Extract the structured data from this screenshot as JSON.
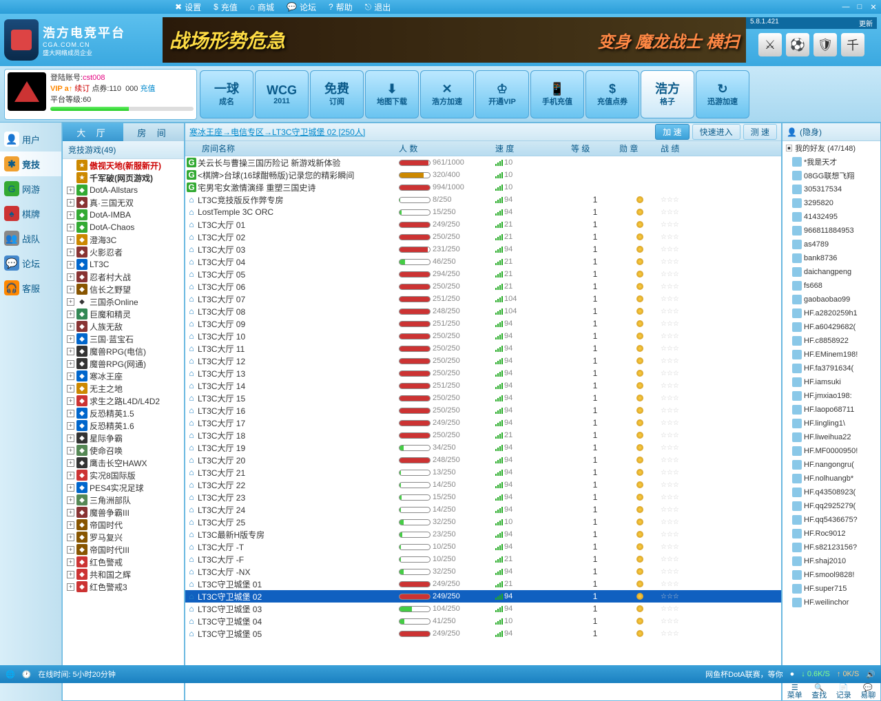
{
  "topbar": {
    "menu": [
      "设置",
      "充值",
      "商城",
      "论坛",
      "帮助",
      "退出"
    ],
    "version": "5.8.1.421",
    "update": "更新"
  },
  "logo": {
    "cn": "浩方电竞平台",
    "en": "CGA.COM.CN",
    "sub": "盛大网络成员企业"
  },
  "banner": {
    "left": "战场形势危急",
    "right": "变身 魔龙战士 横扫"
  },
  "account": {
    "label": "登陆账号:",
    "user": "cst008",
    "vip": "VIP a↑",
    "status": "续订",
    "points_label": "点券:",
    "points": "110",
    "recharge": "充值",
    "level_label": "平台等级:",
    "level": "60",
    "level_pct": 55
  },
  "launch": [
    {
      "t1": "一球",
      "t2": "成名"
    },
    {
      "t1": "WCG",
      "t2": "2011"
    },
    {
      "t1": "免费",
      "t2": "订阅"
    },
    {
      "t1": "⬇",
      "t2": "地图下载"
    },
    {
      "t1": "✕",
      "t2": "浩方加速"
    },
    {
      "t1": "♔",
      "t2": "开通VIP"
    },
    {
      "t1": "📱",
      "t2": "手机充值"
    },
    {
      "t1": "$",
      "t2": "充值点券"
    },
    {
      "t1": "浩方",
      "t2": "格子",
      "hl": true
    },
    {
      "t1": "↻",
      "t2": "迅游加速"
    }
  ],
  "leftnav": [
    {
      "label": "用户",
      "ico": "👤",
      "bg": "#fff"
    },
    {
      "label": "竞技",
      "ico": "✱",
      "bg": "#f0a030",
      "active": true
    },
    {
      "label": "网游",
      "ico": "G",
      "bg": "#3a3"
    },
    {
      "label": "棋牌",
      "ico": "♠",
      "bg": "#c33"
    },
    {
      "label": "战队",
      "ico": "👥",
      "bg": "#888"
    },
    {
      "label": "论坛",
      "ico": "💬",
      "bg": "#48c"
    },
    {
      "label": "客服",
      "ico": "🎧",
      "bg": "#f80"
    }
  ],
  "tree": {
    "tab1": "大    厅",
    "tab2": "房    间",
    "header": "竞技游戏(49)",
    "special": [
      {
        "label": "傲视天地(新服新开)",
        "color": "#c00"
      },
      {
        "label": "千军破(网页游戏)",
        "color": "#333"
      }
    ],
    "items": [
      {
        "label": "DotA-Allstars",
        "bg": "#3a3"
      },
      {
        "label": "真·三国无双",
        "bg": "#833"
      },
      {
        "label": "DotA-IMBA",
        "bg": "#3a3"
      },
      {
        "label": "DotA-Chaos",
        "bg": "#3a3"
      },
      {
        "label": "澄海3C",
        "bg": "#c80"
      },
      {
        "label": "火影忍者",
        "bg": "#833"
      },
      {
        "label": "LT3C",
        "bg": "#06c"
      },
      {
        "label": "忍者村大战",
        "bg": "#833"
      },
      {
        "label": "信长之野望",
        "bg": "#850"
      },
      {
        "label": "三国杀Online",
        "bg": "#fff",
        "fg": "#333"
      },
      {
        "label": "巨魔和精灵",
        "bg": "#385"
      },
      {
        "label": "人族无敌",
        "bg": "#833"
      },
      {
        "label": "三国·蓝宝石",
        "bg": "#06c"
      },
      {
        "label": "魔兽RPG(电信)",
        "bg": "#333"
      },
      {
        "label": "魔兽RPG(网通)",
        "bg": "#333"
      },
      {
        "label": "寒冰王座",
        "bg": "#06c"
      },
      {
        "label": "无主之地",
        "bg": "#c80"
      },
      {
        "label": "求生之路L4D/L4D2",
        "bg": "#c33"
      },
      {
        "label": "反恐精英1.5",
        "bg": "#06c"
      },
      {
        "label": "反恐精英1.6",
        "bg": "#06c"
      },
      {
        "label": "星际争霸",
        "bg": "#333"
      },
      {
        "label": "使命召唤",
        "bg": "#585"
      },
      {
        "label": "鹰击长空HAWX",
        "bg": "#333"
      },
      {
        "label": "实况8国际版",
        "bg": "#c33"
      },
      {
        "label": "PES4实况足球",
        "bg": "#06c"
      },
      {
        "label": "三角洲部队",
        "bg": "#585"
      },
      {
        "label": "魔兽争霸III",
        "bg": "#833"
      },
      {
        "label": "帝国时代",
        "bg": "#850"
      },
      {
        "label": "罗马复兴",
        "bg": "#850"
      },
      {
        "label": "帝国时代III",
        "bg": "#850"
      },
      {
        "label": "红色警戒",
        "bg": "#c33"
      },
      {
        "label": "共和国之辉",
        "bg": "#c33"
      },
      {
        "label": "红色警戒3",
        "bg": "#c33"
      }
    ]
  },
  "breadcrumb": "寒冰王座→电信专区→LT3C守卫城堡 02 [250人]",
  "bc_btns": {
    "accel": "加 速",
    "quick": "快速进入",
    "test": "测 速"
  },
  "room_cols": {
    "name": "房间名称",
    "count": "人 数",
    "speed": "速 度",
    "level": "等 级",
    "medal": "勋 章",
    "record": "战 绩"
  },
  "rooms": [
    {
      "icon": "G",
      "name": "<RPG>关云长与曹操三国历险记 新游戏新体验",
      "c": 961,
      "m": 1000,
      "s": 10,
      "lv": "",
      "md": ""
    },
    {
      "icon": "G",
      "name": "<棋牌>台球(16球酣畅版)记录您的精彩瞬间",
      "c": 320,
      "m": 400,
      "s": 10,
      "lv": "",
      "md": ""
    },
    {
      "icon": "G",
      "name": "<Webgame>宅男宅女激情演绎 重塑三国史诗",
      "c": 994,
      "m": 1000,
      "s": 10,
      "lv": "",
      "md": ""
    },
    {
      "icon": "H",
      "name": "LT3C竞技版反作弊专房",
      "c": 8,
      "m": 250,
      "s": 94,
      "lv": 1,
      "md": "g"
    },
    {
      "icon": "H",
      "name": "LostTemple 3C ORC",
      "c": 15,
      "m": 250,
      "s": 94,
      "lv": 1,
      "md": "g"
    },
    {
      "icon": "H",
      "name": "LT3C大厅 01",
      "c": 249,
      "m": 250,
      "s": 21,
      "lv": 1,
      "md": "g"
    },
    {
      "icon": "H",
      "name": "LT3C大厅 02",
      "c": 250,
      "m": 250,
      "s": 21,
      "lv": 1,
      "md": "g"
    },
    {
      "icon": "H",
      "name": "LT3C大厅 03",
      "c": 231,
      "m": 250,
      "s": 94,
      "lv": 1,
      "md": "g"
    },
    {
      "icon": "H",
      "name": "LT3C大厅 04",
      "c": 46,
      "m": 250,
      "s": 21,
      "lv": 1,
      "md": "g"
    },
    {
      "icon": "H",
      "name": "LT3C大厅 05",
      "c": 294,
      "m": 250,
      "s": 21,
      "lv": 1,
      "md": "g"
    },
    {
      "icon": "H",
      "name": "LT3C大厅 06",
      "c": 250,
      "m": 250,
      "s": 21,
      "lv": 1,
      "md": "g"
    },
    {
      "icon": "H",
      "name": "LT3C大厅 07",
      "c": 251,
      "m": 250,
      "s": 104,
      "lv": 1,
      "md": "g"
    },
    {
      "icon": "H",
      "name": "LT3C大厅 08",
      "c": 248,
      "m": 250,
      "s": 104,
      "lv": 1,
      "md": "g"
    },
    {
      "icon": "H",
      "name": "LT3C大厅 09",
      "c": 251,
      "m": 250,
      "s": 94,
      "lv": 1,
      "md": "g"
    },
    {
      "icon": "H",
      "name": "LT3C大厅 10",
      "c": 250,
      "m": 250,
      "s": 94,
      "lv": 1,
      "md": "g"
    },
    {
      "icon": "H",
      "name": "LT3C大厅 11",
      "c": 250,
      "m": 250,
      "s": 94,
      "lv": 1,
      "md": "g"
    },
    {
      "icon": "H",
      "name": "LT3C大厅 12",
      "c": 250,
      "m": 250,
      "s": 94,
      "lv": 1,
      "md": "g"
    },
    {
      "icon": "H",
      "name": "LT3C大厅 13",
      "c": 250,
      "m": 250,
      "s": 94,
      "lv": 1,
      "md": "g"
    },
    {
      "icon": "H",
      "name": "LT3C大厅 14",
      "c": 251,
      "m": 250,
      "s": 94,
      "lv": 1,
      "md": "g"
    },
    {
      "icon": "H",
      "name": "LT3C大厅 15",
      "c": 250,
      "m": 250,
      "s": 94,
      "lv": 1,
      "md": "g"
    },
    {
      "icon": "H",
      "name": "LT3C大厅 16",
      "c": 250,
      "m": 250,
      "s": 94,
      "lv": 1,
      "md": "g"
    },
    {
      "icon": "H",
      "name": "LT3C大厅 17",
      "c": 249,
      "m": 250,
      "s": 94,
      "lv": 1,
      "md": "g"
    },
    {
      "icon": "H",
      "name": "LT3C大厅 18",
      "c": 250,
      "m": 250,
      "s": 21,
      "lv": 1,
      "md": "g"
    },
    {
      "icon": "H",
      "name": "LT3C大厅 19",
      "c": 34,
      "m": 250,
      "s": 94,
      "lv": 1,
      "md": "g"
    },
    {
      "icon": "H",
      "name": "LT3C大厅 20",
      "c": 248,
      "m": 250,
      "s": 94,
      "lv": 1,
      "md": "g"
    },
    {
      "icon": "H",
      "name": "LT3C大厅 21",
      "c": 13,
      "m": 250,
      "s": 94,
      "lv": 1,
      "md": "g"
    },
    {
      "icon": "H",
      "name": "LT3C大厅 22",
      "c": 14,
      "m": 250,
      "s": 94,
      "lv": 1,
      "md": "g"
    },
    {
      "icon": "H",
      "name": "LT3C大厅 23",
      "c": 15,
      "m": 250,
      "s": 94,
      "lv": 1,
      "md": "g"
    },
    {
      "icon": "H",
      "name": "LT3C大厅 24",
      "c": 14,
      "m": 250,
      "s": 94,
      "lv": 1,
      "md": "g"
    },
    {
      "icon": "H",
      "name": "LT3C大厅 25",
      "c": 32,
      "m": 250,
      "s": 10,
      "lv": 1,
      "md": "g"
    },
    {
      "icon": "H",
      "name": "LT3C最新H版专房",
      "c": 23,
      "m": 250,
      "s": 94,
      "lv": 1,
      "md": "g"
    },
    {
      "icon": "H",
      "name": "LT3C大厅 -T",
      "c": 10,
      "m": 250,
      "s": 94,
      "lv": 1,
      "md": "g"
    },
    {
      "icon": "H",
      "name": "LT3C大厅 -F",
      "c": 10,
      "m": 250,
      "s": 21,
      "lv": 1,
      "md": "g"
    },
    {
      "icon": "H",
      "name": "LT3C大厅 -NX",
      "c": 32,
      "m": 250,
      "s": 94,
      "lv": 1,
      "md": "g"
    },
    {
      "icon": "H",
      "name": "LT3C守卫城堡 01",
      "c": 249,
      "m": 250,
      "s": 21,
      "lv": 1,
      "md": "g"
    },
    {
      "icon": "H",
      "name": "LT3C守卫城堡 02",
      "c": 249,
      "m": 250,
      "s": 94,
      "lv": 1,
      "md": "g",
      "sel": true
    },
    {
      "icon": "H",
      "name": "LT3C守卫城堡 03",
      "c": 104,
      "m": 250,
      "s": 94,
      "lv": 1,
      "md": "g"
    },
    {
      "icon": "H",
      "name": "LT3C守卫城堡 04",
      "c": 41,
      "m": 250,
      "s": 10,
      "lv": 1,
      "md": "g"
    },
    {
      "icon": "H",
      "name": "LT3C守卫城堡 05",
      "c": 249,
      "m": 250,
      "s": 94,
      "lv": 1,
      "md": "g"
    }
  ],
  "friends": {
    "status": "(隐身)",
    "group": "我的好友 (47/148)",
    "list": [
      "*我是天才",
      "08GG联想飞翔",
      "305317534",
      "3295820",
      "41432495",
      "966811884953",
      "as4789",
      "bank8736",
      "daichangpeng",
      "fs668",
      "gaobaobao99",
      "HF.a2820259h1",
      "HF.a60429682(",
      "HF.c8858922",
      "HF.EMinem198!",
      "HF.fa3791634(",
      "HF.iamsuki",
      "HF.jmxiao198:",
      "HF.laopo68711",
      "HF.lingling1\\",
      "HF.liweihua22",
      "HF.MF0000950!",
      "HF.nangongru(",
      "HF.nolhuangb*",
      "HF.q43508923(",
      "HF.qq2925279(",
      "HF.qq5436675?",
      "HF.Roc9012",
      "HF.s82123156?",
      "HF.shaj2010",
      "HF.smool9828!",
      "HF.super715",
      "HF.weilinchor"
    ],
    "footer": [
      "菜单",
      "查找",
      "记录",
      "易聊"
    ]
  },
  "footer": {
    "online": "在线时间: 5小时20分钟",
    "news": "网鱼杯DotA联赛，等你",
    "dl": "0.6K/S",
    "ul": "0K/S"
  }
}
